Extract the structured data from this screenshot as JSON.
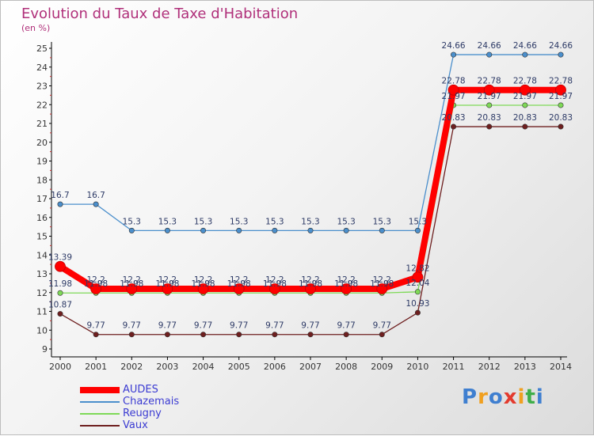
{
  "chart_data": {
    "type": "line",
    "title": "Evolution du Taux de Taxe d'Habitation",
    "unit_label": "(en %)",
    "x": [
      "2000",
      "2001",
      "2002",
      "2003",
      "2004",
      "2005",
      "2006",
      "2007",
      "2008",
      "2009",
      "2010",
      "2011",
      "2012",
      "2013",
      "2014"
    ],
    "ylim": [
      9,
      25
    ],
    "yticks": [
      9,
      10,
      11,
      12,
      13,
      14,
      15,
      16,
      17,
      18,
      19,
      20,
      21,
      22,
      23,
      24,
      25
    ],
    "grid": false,
    "legend_position": "bottom-left",
    "series": [
      {
        "name": "AUDES",
        "color": "#ff0000",
        "values": [
          13.39,
          12.2,
          12.2,
          12.2,
          12.2,
          12.2,
          12.2,
          12.2,
          12.2,
          12.2,
          12.82,
          22.78,
          22.78,
          22.78,
          22.78
        ],
        "labels": [
          "13.39",
          "12.2",
          "12.2",
          "12.2",
          "12.2",
          "12.2",
          "12.2",
          "12.2",
          "12.2",
          "12.2",
          "12.82",
          "22.78",
          "22.78",
          "22.78",
          "22.78"
        ]
      },
      {
        "name": "Chazemais",
        "color": "#4b8fcc",
        "values": [
          16.7,
          16.7,
          15.3,
          15.3,
          15.3,
          15.3,
          15.3,
          15.3,
          15.3,
          15.3,
          15.3,
          24.66,
          24.66,
          24.66,
          24.66
        ],
        "labels": [
          "16.7",
          "16.7",
          "15.3",
          "15.3",
          "15.3",
          "15.3",
          "15.3",
          "15.3",
          "15.3",
          "15.3",
          "15.3",
          "24.66",
          "24.66",
          "24.66",
          "24.66"
        ]
      },
      {
        "name": "Reugny",
        "color": "#7ed957",
        "values": [
          11.98,
          11.98,
          11.98,
          11.98,
          11.98,
          11.98,
          11.98,
          11.98,
          11.98,
          11.98,
          12.04,
          21.97,
          21.97,
          21.97,
          21.97
        ],
        "labels": [
          "11.98",
          "11.98",
          "11.98",
          "11.98",
          "11.98",
          "11.98",
          "11.98",
          "11.98",
          "11.98",
          "11.98",
          "12.04",
          "21.97",
          "21.97",
          "21.97",
          "21.97"
        ]
      },
      {
        "name": "Vaux",
        "color": "#6e1f1f",
        "values": [
          10.87,
          9.77,
          9.77,
          9.77,
          9.77,
          9.77,
          9.77,
          9.77,
          9.77,
          9.77,
          10.93,
          20.83,
          20.83,
          20.83,
          20.83
        ],
        "labels": [
          "10.87",
          "9.77",
          "9.77",
          "9.77",
          "9.77",
          "9.77",
          "9.77",
          "9.77",
          "9.77",
          "9.77",
          "10.93",
          "20.83",
          "20.83",
          "20.83",
          "20.83"
        ]
      }
    ]
  },
  "logo": {
    "letters": [
      "P",
      "r",
      "o",
      "x",
      "i",
      "t",
      "i"
    ],
    "colors": [
      "#3f7fd0",
      "#f0a020",
      "#3f7fd0",
      "#e33b2e",
      "#f0a020",
      "#3fae49",
      "#3f7fd0"
    ]
  }
}
